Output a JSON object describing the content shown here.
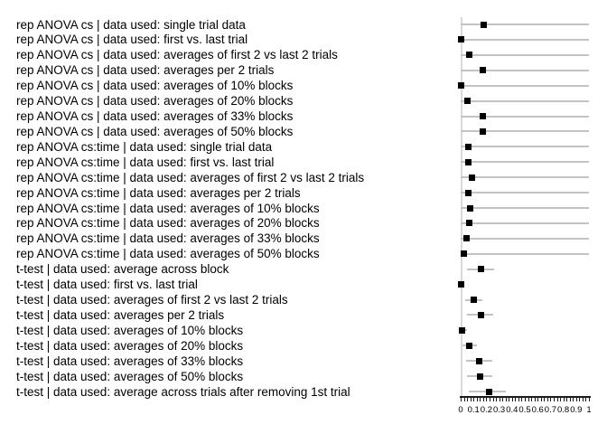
{
  "chart_data": {
    "type": "scatter",
    "title": "",
    "xlabel": "",
    "ylabel": "",
    "xlim": [
      0,
      1
    ],
    "grid": false,
    "legend": "none",
    "marker_style": "filled-square",
    "x_tick_labels": [
      "0",
      "0.1",
      "0.2",
      "0.3",
      "0.4",
      "0.5",
      "0.6",
      "0.7",
      "0.8",
      "0.9",
      "1"
    ],
    "x_major_tick_step": 0.1,
    "x_minor_tick_step": 0.025,
    "rows": [
      {
        "label": "rep ANOVA cs | data used: single trial data",
        "value": 0.18,
        "lo": 0.0,
        "hi": 1.0
      },
      {
        "label": "rep ANOVA cs | data used: first vs. last trial",
        "value": 0.005,
        "lo": 0.0,
        "hi": 1.0
      },
      {
        "label": "rep ANOVA cs | data used: averages of first 2 vs last 2 trials",
        "value": 0.07,
        "lo": 0.0,
        "hi": 1.0
      },
      {
        "label": "rep ANOVA cs | data used: averages per 2 trials",
        "value": 0.17,
        "lo": 0.0,
        "hi": 1.0
      },
      {
        "label": "rep ANOVA cs | data used: averages of 10% blocks",
        "value": 0.005,
        "lo": 0.0,
        "hi": 1.0
      },
      {
        "label": "rep ANOVA cs | data used: averages of 20% blocks",
        "value": 0.05,
        "lo": 0.0,
        "hi": 1.0
      },
      {
        "label": "rep ANOVA cs | data used: averages of 33% blocks",
        "value": 0.17,
        "lo": 0.0,
        "hi": 1.0
      },
      {
        "label": "rep ANOVA cs | data used: averages of 50% blocks",
        "value": 0.175,
        "lo": 0.0,
        "hi": 1.0
      },
      {
        "label": "rep ANOVA cs:time | data used: single trial data",
        "value": 0.06,
        "lo": 0.0,
        "hi": 1.0
      },
      {
        "label": "rep ANOVA cs:time | data used: first vs. last trial",
        "value": 0.06,
        "lo": 0.0,
        "hi": 1.0
      },
      {
        "label": "rep ANOVA cs:time | data used: averages of first 2 vs last 2 trials",
        "value": 0.09,
        "lo": 0.0,
        "hi": 1.0
      },
      {
        "label": "rep ANOVA cs:time | data used: averages per 2 trials",
        "value": 0.06,
        "lo": 0.0,
        "hi": 1.0
      },
      {
        "label": "rep ANOVA cs:time | data used: averages of 10% blocks",
        "value": 0.075,
        "lo": 0.0,
        "hi": 1.0
      },
      {
        "label": "rep ANOVA cs:time | data used: averages of 20% blocks",
        "value": 0.07,
        "lo": 0.0,
        "hi": 1.0
      },
      {
        "label": "rep ANOVA cs:time | data used: averages of 33% blocks",
        "value": 0.045,
        "lo": 0.0,
        "hi": 1.0
      },
      {
        "label": "rep ANOVA cs:time | data used: averages of 50% blocks",
        "value": 0.025,
        "lo": 0.0,
        "hi": 1.0
      },
      {
        "label": "t-test | data used: average across block",
        "value": 0.155,
        "lo": 0.05,
        "hi": 0.26
      },
      {
        "label": "t-test | data used: first vs. last trial",
        "value": 0.005,
        "lo": 0.0,
        "hi": 0.03
      },
      {
        "label": "t-test | data used: averages of first 2 vs last 2 trials",
        "value": 0.1,
        "lo": 0.035,
        "hi": 0.17
      },
      {
        "label": "t-test | data used: averages per 2 trials",
        "value": 0.155,
        "lo": 0.05,
        "hi": 0.255
      },
      {
        "label": "t-test | data used: averages of 10% blocks",
        "value": 0.012,
        "lo": 0.0,
        "hi": 0.05
      },
      {
        "label": "t-test | data used: averages of 20% blocks",
        "value": 0.065,
        "lo": 0.012,
        "hi": 0.13
      },
      {
        "label": "t-test | data used: averages of 33% blocks",
        "value": 0.145,
        "lo": 0.04,
        "hi": 0.245
      },
      {
        "label": "t-test | data used: averages of 50% blocks",
        "value": 0.15,
        "lo": 0.047,
        "hi": 0.245
      },
      {
        "label": "t-test | data used: average across trials after removing 1st trial",
        "value": 0.22,
        "lo": 0.065,
        "hi": 0.35
      }
    ]
  },
  "colors": {
    "background": "#ffffff",
    "marker": "#000000",
    "error_bar": "#c3c3c3",
    "y_axis_line": "#d9d9d9",
    "x_axis_line": "#1a1a1a",
    "tick_label": "#000000"
  }
}
